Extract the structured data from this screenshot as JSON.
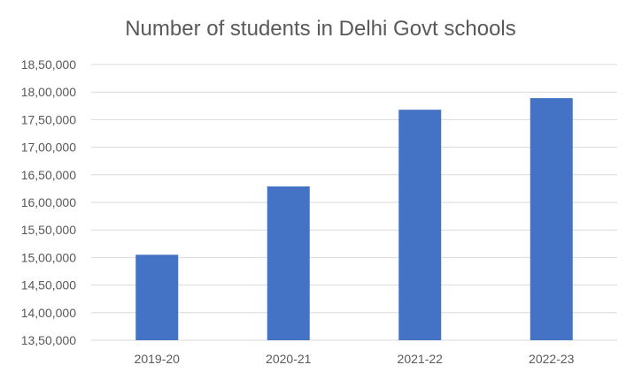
{
  "chart_data": {
    "type": "bar",
    "title": "Number of students in Delhi Govt schools",
    "categories": [
      "2019-20",
      "2020-21",
      "2021-22",
      "2022-23"
    ],
    "values": [
      1505000,
      1629000,
      1768000,
      1789000
    ],
    "y_ticks": [
      "13,50,000",
      "14,00,000",
      "14,50,000",
      "15,00,000",
      "15,50,000",
      "16,00,000",
      "16,50,000",
      "17,00,000",
      "17,50,000",
      "18,00,000",
      "18,50,000"
    ],
    "ylim": [
      1350000,
      1850000
    ],
    "grid": true,
    "legend": "none",
    "colors": {
      "bar": "#4472C4",
      "grid": "#D9D9D9",
      "text": "#595959"
    }
  }
}
